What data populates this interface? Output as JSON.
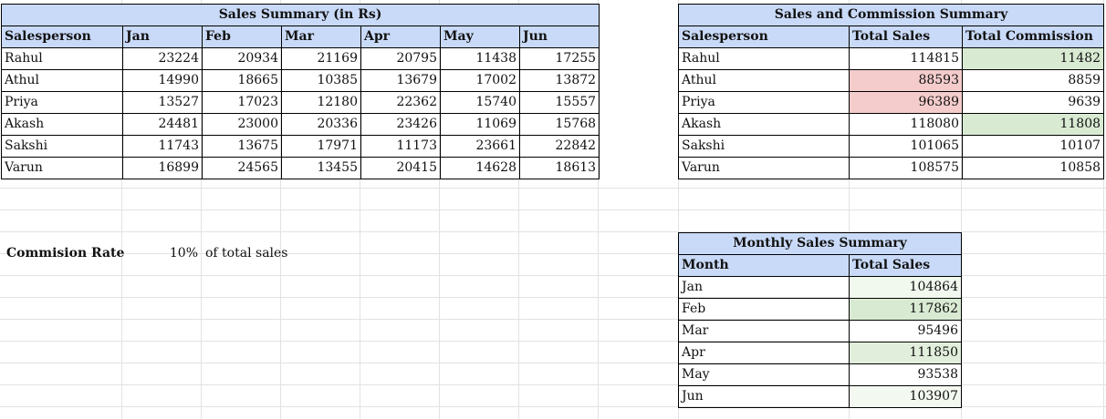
{
  "sales_summary": {
    "title": "Sales Summary (in Rs)",
    "headers": [
      "Salesperson",
      "Jan",
      "Feb",
      "Mar",
      "Apr",
      "May",
      "Jun"
    ],
    "rows": [
      [
        "Rahul",
        "23224",
        "20934",
        "21169",
        "20795",
        "11438",
        "17255"
      ],
      [
        "Athul",
        "14990",
        "18665",
        "10385",
        "13679",
        "17002",
        "13872"
      ],
      [
        "Priya",
        "13527",
        "17023",
        "12180",
        "22362",
        "15740",
        "15557"
      ],
      [
        "Akash",
        "24481",
        "23000",
        "20336",
        "23426",
        "11069",
        "15768"
      ],
      [
        "Sakshi",
        "11743",
        "13675",
        "17971",
        "11173",
        "23661",
        "22842"
      ],
      [
        "Varun",
        "16899",
        "24565",
        "13455",
        "20415",
        "14628",
        "18613"
      ]
    ]
  },
  "commission": {
    "label": "Commision Rate",
    "rate": "10%",
    "note": "of total sales"
  },
  "commission_summary": {
    "title": "Sales and Commission Summary",
    "headers": [
      "Salesperson",
      "Total Sales",
      "Total Commission"
    ],
    "rows": [
      [
        "Rahul",
        "114815",
        "11482"
      ],
      [
        "Athul",
        "88593",
        "8859"
      ],
      [
        "Priya",
        "96389",
        "9639"
      ],
      [
        "Akash",
        "118080",
        "11808"
      ],
      [
        "Sakshi",
        "101065",
        "10107"
      ],
      [
        "Varun",
        "108575",
        "10858"
      ]
    ],
    "highlight_colors": {
      "low": "#f4cccc",
      "high": "#d9ead3"
    }
  },
  "monthly_summary": {
    "title": "Monthly Sales Summary",
    "headers": [
      "Month",
      "Total Sales"
    ],
    "rows": [
      [
        "Jan",
        "104864"
      ],
      [
        "Feb",
        "117862"
      ],
      [
        "Mar",
        "95496"
      ],
      [
        "Apr",
        "111850"
      ],
      [
        "May",
        "93538"
      ],
      [
        "Jun",
        "103907"
      ]
    ],
    "colors": [
      "#f1f8ee",
      "#d9ead3",
      "#ffffff",
      "#e1eedb",
      "#ffffff",
      "#f3f9f0"
    ]
  }
}
